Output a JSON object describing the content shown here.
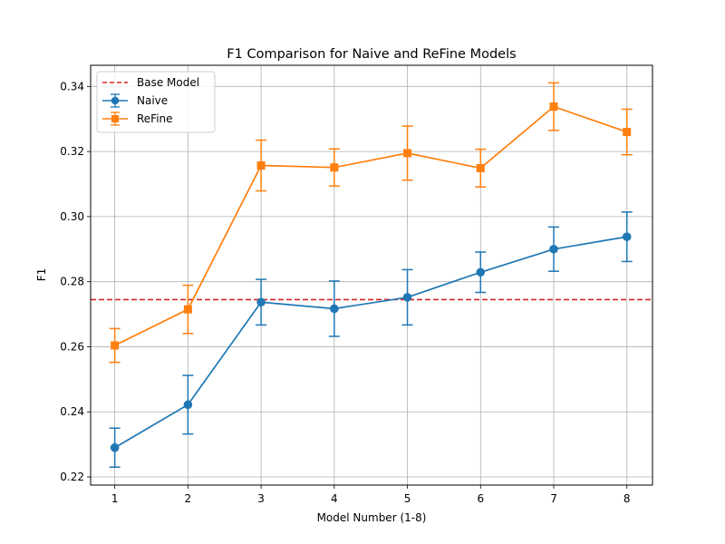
{
  "chart_data": {
    "type": "line",
    "title": "F1 Comparison for Naive and ReFine Models",
    "xlabel": "Model Number (1-8)",
    "ylabel": "F1",
    "x": [
      1,
      2,
      3,
      4,
      5,
      6,
      7,
      8
    ],
    "xlim": [
      0.67,
      8.35
    ],
    "ylim": [
      0.2175,
      0.3465
    ],
    "yticks": [
      0.22,
      0.24,
      0.26,
      0.28,
      0.3,
      0.32,
      0.34
    ],
    "ytick_labels": [
      "0.22",
      "0.24",
      "0.26",
      "0.28",
      "0.30",
      "0.32",
      "0.34"
    ],
    "grid": true,
    "legend_position": "upper left",
    "reference_line": {
      "name": "Base Model",
      "value": 0.2745,
      "color": "#d62728",
      "style": "dashed"
    },
    "series": [
      {
        "name": "Naive",
        "color": "#1f77b4",
        "marker": "circle",
        "values": [
          0.229,
          0.2422,
          0.2737,
          0.2717,
          0.2752,
          0.2829,
          0.29,
          0.2938
        ],
        "errors": [
          0.006,
          0.009,
          0.007,
          0.0085,
          0.0085,
          0.0062,
          0.0068,
          0.0076
        ]
      },
      {
        "name": "ReFine",
        "color": "#ff7f0e",
        "marker": "square",
        "values": [
          0.2604,
          0.2715,
          0.3157,
          0.3151,
          0.3195,
          0.3149,
          0.3338,
          0.326
        ],
        "errors": [
          0.0052,
          0.0074,
          0.0078,
          0.0057,
          0.0083,
          0.0058,
          0.0073,
          0.007
        ]
      }
    ]
  }
}
